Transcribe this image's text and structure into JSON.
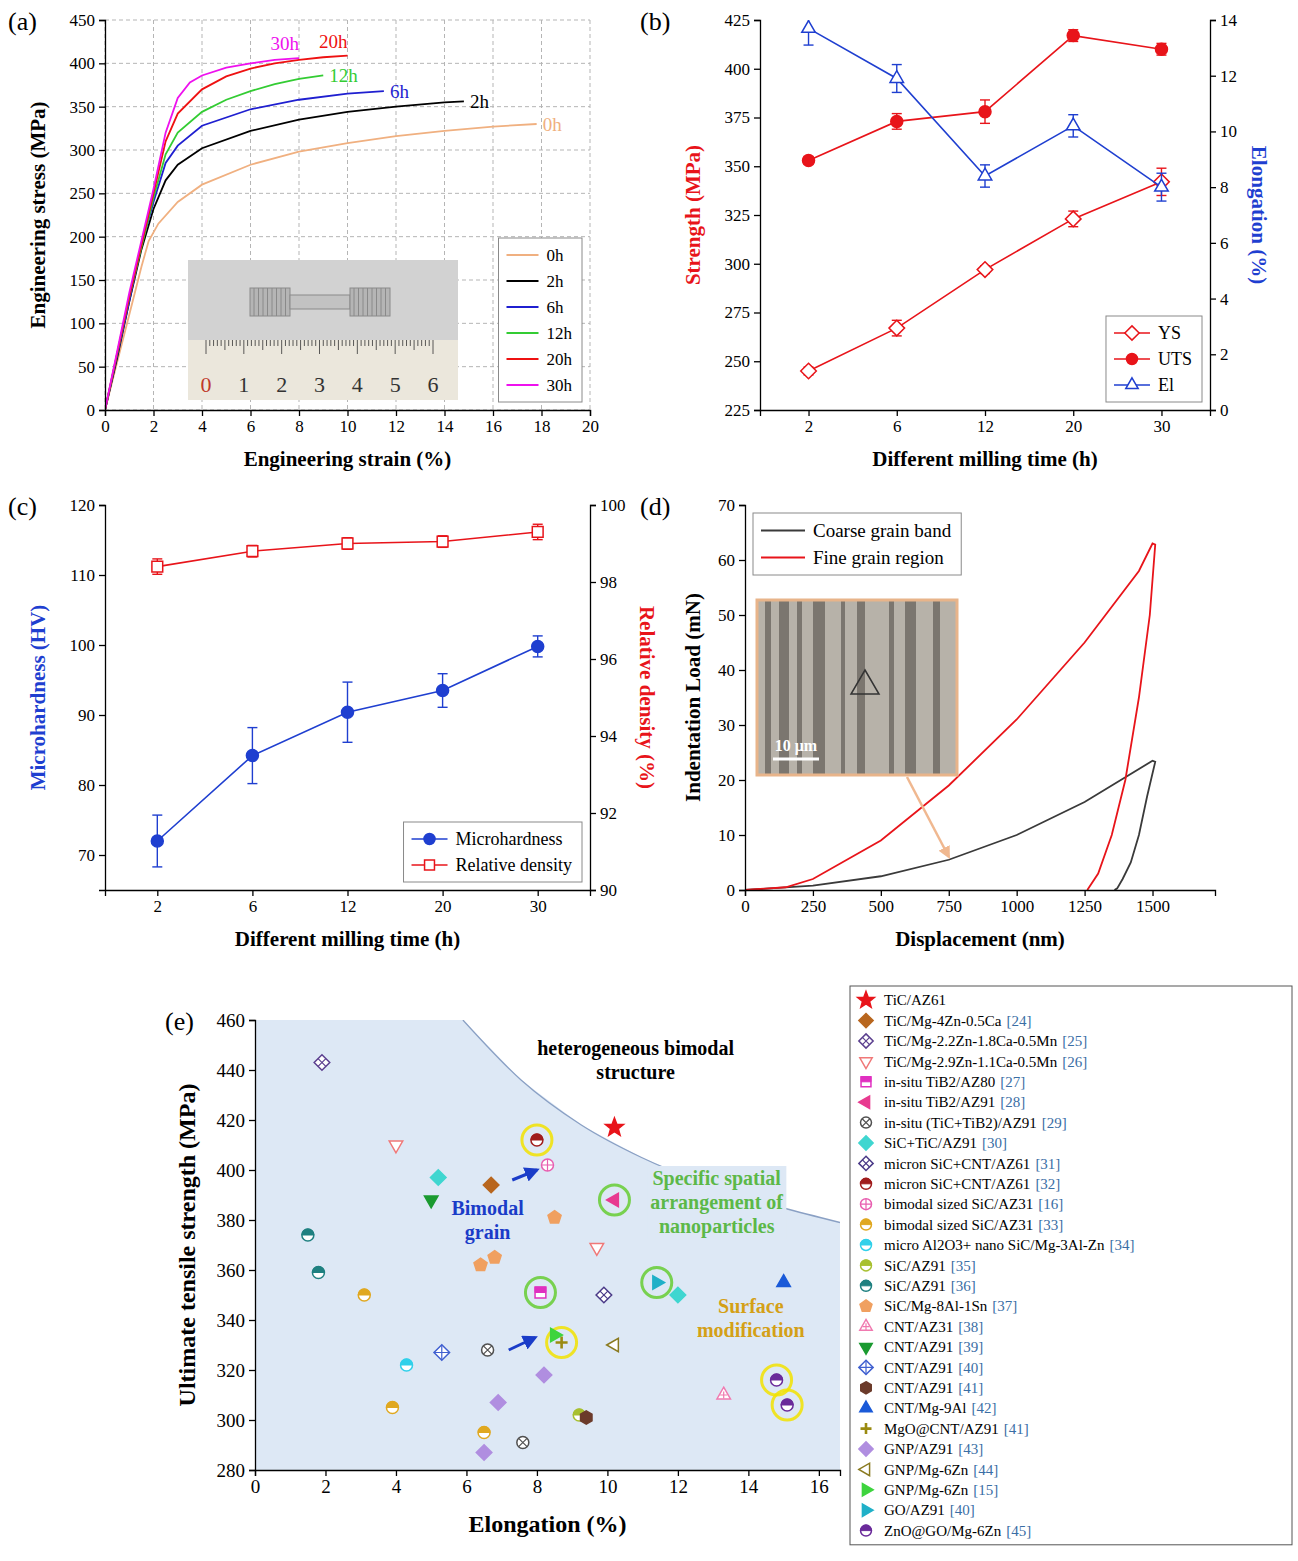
{
  "chart_data": [
    {
      "type": "line",
      "panel_label": "(a)",
      "xlabel": "Engineering strain (%)",
      "ylabel": "Engineering stress (MPa)",
      "xlim": [
        0,
        20
      ],
      "xticks": [
        0,
        2,
        4,
        6,
        8,
        10,
        12,
        14,
        16,
        18,
        20
      ],
      "ylim": [
        0,
        450
      ],
      "yticks": [
        0,
        50,
        100,
        150,
        200,
        250,
        300,
        350,
        400,
        450
      ],
      "grid": true,
      "legend": "lower right",
      "inset_labels": [
        "0",
        "1",
        "2",
        "3",
        "4",
        "5",
        "6"
      ],
      "series": [
        {
          "name": "0h",
          "color": "#f0b080",
          "x": [
            0,
            0.5,
            1,
            1.5,
            1.8,
            2.2,
            3,
            4,
            6,
            8,
            10,
            12,
            14,
            16,
            17.8
          ],
          "values": [
            0,
            55,
            110,
            165,
            195,
            215,
            240,
            260,
            283,
            298,
            308,
            316,
            322,
            327,
            330
          ]
        },
        {
          "name": "2h",
          "color": "#000000",
          "x": [
            0,
            0.5,
            1,
            1.5,
            2,
            2.5,
            3,
            4,
            6,
            8,
            10,
            12,
            14,
            14.8
          ],
          "values": [
            0,
            60,
            125,
            185,
            232,
            265,
            283,
            302,
            322,
            335,
            344,
            350,
            355,
            356
          ]
        },
        {
          "name": "6h",
          "color": "#1f1fd0",
          "x": [
            0,
            1,
            1.5,
            2,
            2.5,
            3,
            4,
            6,
            8,
            10,
            11.5
          ],
          "values": [
            0,
            125,
            190,
            240,
            285,
            305,
            328,
            347,
            358,
            365,
            368
          ]
        },
        {
          "name": "12h",
          "color": "#33cc33",
          "x": [
            0,
            1,
            2,
            2.5,
            3,
            4,
            5,
            6,
            7,
            8,
            9
          ],
          "values": [
            0,
            130,
            245,
            295,
            320,
            344,
            358,
            368,
            376,
            382,
            386
          ]
        },
        {
          "name": "20h",
          "color": "#ee1111",
          "x": [
            0,
            1,
            2,
            2.5,
            3,
            4,
            5,
            6,
            7,
            8,
            9,
            10
          ],
          "values": [
            0,
            130,
            250,
            310,
            342,
            370,
            385,
            394,
            400,
            404,
            407,
            409
          ]
        },
        {
          "name": "30h",
          "color": "#ee11ee",
          "x": [
            0,
            1,
            2,
            2.5,
            3,
            3.5,
            4,
            5,
            6,
            7,
            8
          ],
          "values": [
            0,
            135,
            255,
            320,
            360,
            378,
            386,
            395,
            400,
            404,
            406
          ]
        }
      ]
    },
    {
      "type": "line",
      "panel_label": "(b)",
      "xlabel": "Different milling time (h)",
      "ylabel": "Strength (MPa)",
      "y2label": "Elongation (%)",
      "categories": [
        "2",
        "6",
        "12",
        "20",
        "30"
      ],
      "ylim": [
        225,
        425
      ],
      "yticks": [
        225,
        250,
        275,
        300,
        325,
        350,
        375,
        400,
        425
      ],
      "y2lim": [
        0,
        14
      ],
      "y2ticks": [
        0,
        2,
        4,
        6,
        8,
        10,
        12,
        14
      ],
      "legend": "lower right",
      "series": [
        {
          "name": "YS",
          "color": "#e8141a",
          "marker": "diamond-open",
          "values": [
            245,
            267,
            297,
            323,
            342
          ],
          "errors": [
            2,
            4,
            2,
            4,
            7
          ]
        },
        {
          "name": "UTS",
          "color": "#e8141a",
          "marker": "circle",
          "values": [
            353,
            373,
            378,
            417,
            410
          ],
          "errors": [
            2,
            4,
            6,
            3,
            3
          ]
        },
        {
          "name": "El",
          "color": "#1f3fd0",
          "marker": "triangle-open",
          "axis": "y2",
          "values": [
            13.7,
            11.9,
            8.4,
            10.2,
            8.0
          ],
          "errors": [
            0.6,
            0.5,
            0.4,
            0.4,
            0.5
          ]
        }
      ]
    },
    {
      "type": "line",
      "panel_label": "(c)",
      "xlabel": "Different milling time (h)",
      "ylabel": "Microhardness (HV)",
      "y2label": "Relative density (%)",
      "categories": [
        "2",
        "6",
        "12",
        "20",
        "30"
      ],
      "ylim": [
        65,
        120
      ],
      "yticks": [
        70,
        80,
        90,
        100,
        110,
        120
      ],
      "y2lim": [
        90,
        100
      ],
      "y2ticks": [
        90,
        92,
        94,
        96,
        98,
        100
      ],
      "legend": "lower right",
      "series": [
        {
          "name": "Microhardness",
          "color": "#1f3fd0",
          "marker": "circle",
          "values": [
            72,
            84.2,
            90.4,
            93.5,
            99.8
          ],
          "errors": [
            3.7,
            4,
            4.3,
            2.4,
            1.5
          ]
        },
        {
          "name": "Relative density",
          "color": "#e8141a",
          "marker": "square-open",
          "axis": "y2",
          "values": [
            98.4,
            98.8,
            99.0,
            99.05,
            99.3
          ],
          "errors": [
            0.2,
            0.15,
            0.15,
            0.15,
            0.2
          ]
        }
      ]
    },
    {
      "type": "line",
      "panel_label": "(d)",
      "xlabel": "Displacement (nm)",
      "ylabel": "Indentation Load (mN)",
      "xlim": [
        0,
        1730
      ],
      "xticks": [
        0,
        250,
        500,
        750,
        1000,
        1250,
        1500
      ],
      "ylim": [
        0,
        70
      ],
      "yticks": [
        0,
        10,
        20,
        30,
        40,
        50,
        60,
        70
      ],
      "legend": "upper left",
      "annotations": [
        {
          "text": "10 μm"
        }
      ],
      "series": [
        {
          "name": "Coarse grain band",
          "color": "#3a3a3a",
          "x": [
            0,
            250,
            500,
            750,
            1000,
            1250,
            1500,
            1510,
            1480,
            1450,
            1420,
            1390,
            1370,
            1360
          ],
          "values": [
            0,
            0.8,
            2.5,
            5.5,
            10,
            16,
            23.5,
            23.3,
            17,
            10,
            5,
            2,
            0.3,
            0
          ]
        },
        {
          "name": "Fine grain region",
          "color": "#e8141a",
          "x": [
            0,
            150,
            250,
            500,
            750,
            1000,
            1250,
            1450,
            1500,
            1510,
            1490,
            1450,
            1400,
            1350,
            1300,
            1260
          ],
          "values": [
            0,
            0.5,
            2,
            9,
            19,
            31,
            45,
            58,
            63,
            62.8,
            50,
            35,
            20,
            10,
            3,
            0
          ]
        }
      ]
    },
    {
      "type": "scatter",
      "panel_label": "(e)",
      "xlabel": "Elongation (%)",
      "ylabel": "Ultimate tensile strength (MPa)",
      "xlim": [
        0,
        16.6
      ],
      "xticks": [
        0,
        2,
        4,
        6,
        8,
        10,
        12,
        14,
        16
      ],
      "ylim": [
        280,
        460
      ],
      "yticks": [
        280,
        300,
        320,
        340,
        360,
        380,
        400,
        420,
        440,
        460
      ],
      "legend": "right",
      "boundary": {
        "x": [
          5.9,
          7.55,
          9.26,
          10.97,
          12.68,
          14.96,
          16.6
        ],
        "y": [
          460,
          436,
          418,
          405,
          395,
          385,
          379
        ]
      },
      "annotations": [
        {
          "text": [
            "heterogeneous bimodal",
            "structure"
          ],
          "x": 10.8,
          "y": 446,
          "color": "#000000"
        },
        {
          "text": [
            "Bimodal",
            "grain"
          ],
          "x": 6.6,
          "y": 382,
          "color": "#1a3cc8"
        },
        {
          "text": [
            "Specific spatial",
            "arrangement of",
            "nanoparticles"
          ],
          "x": 13.1,
          "y": 394,
          "color": "#5cb848"
        },
        {
          "text": [
            "Surface",
            "modification"
          ],
          "x": 14.07,
          "y": 343,
          "color": "#d4a017"
        }
      ],
      "highlights": [
        {
          "x": 8.0,
          "y": 412,
          "color": "#f2e200"
        },
        {
          "x": 8.7,
          "y": 331,
          "color": "#f2e200"
        },
        {
          "x": 14.8,
          "y": 316,
          "color": "#f2e200"
        },
        {
          "x": 15.1,
          "y": 306,
          "color": "#f2e200"
        },
        {
          "x": 8.1,
          "y": 351,
          "color": "#66cc33"
        },
        {
          "x": 10.2,
          "y": 388,
          "color": "#66cc33"
        },
        {
          "x": 11.4,
          "y": 355,
          "color": "#66cc33"
        }
      ],
      "arrows": [
        {
          "x": [
            7.3,
            8.0
          ],
          "y": [
            396,
            400
          ],
          "color": "#1a3cc8"
        },
        {
          "x": [
            7.2,
            7.95
          ],
          "y": [
            328,
            333
          ],
          "color": "#1a3cc8"
        }
      ],
      "series": [
        {
          "name": "TiC/AZ61",
          "color": "#e8141a",
          "marker": "star",
          "x": [
            10.2
          ],
          "values": [
            417
          ]
        },
        {
          "name": "TiC/Mg-4Zn-0.5Ca",
          "ref": "[24]",
          "color": "#b8661e",
          "marker": "diamond",
          "x": [
            6.7
          ],
          "values": [
            394
          ]
        },
        {
          "name": "TiC/Mg-2.2Zn-1.8Ca-0.5Mn",
          "ref": "[25]",
          "color": "#5b3f8f",
          "marker": "diamond-open-x",
          "x": [
            1.9
          ],
          "values": [
            443
          ]
        },
        {
          "name": "TiC/Mg-2.9Zn-1.1Ca-0.5Mn",
          "ref": "[26]",
          "color": "#f07878",
          "marker": "triangle-down-open",
          "x": [
            4.0,
            9.7
          ],
          "values": [
            410,
            369
          ]
        },
        {
          "name": "in-situ TiB2/AZ80",
          "ref": "[27]",
          "color": "#e030c0",
          "marker": "square-half",
          "x": [
            8.1
          ],
          "values": [
            351
          ]
        },
        {
          "name": "in-situ TiB2/AZ91",
          "ref": "[28]",
          "color": "#e83a90",
          "marker": "triangle-left",
          "x": [
            10.2
          ],
          "values": [
            388
          ]
        },
        {
          "name": "in-situ (TiC+TiB2)/AZ91",
          "ref": "[29]",
          "color": "#505050",
          "marker": "circle-open-x",
          "x": [
            6.6,
            7.6
          ],
          "values": [
            328,
            291
          ]
        },
        {
          "name": "SiC+TiC/AZ91",
          "ref": "[30]",
          "color": "#3fd6d0",
          "marker": "diamond",
          "x": [
            5.2,
            12.0
          ],
          "values": [
            397,
            350
          ]
        },
        {
          "name": "micron SiC+CNT/AZ61",
          "ref": "[31]",
          "color": "#4a3a88",
          "marker": "diamond-open-x",
          "x": [
            9.9
          ],
          "values": [
            350
          ]
        },
        {
          "name": "micron SiC+CNT/AZ61",
          "ref": "[32]",
          "color": "#a01c1c",
          "marker": "circle-half",
          "x": [
            8.0
          ],
          "values": [
            412
          ]
        },
        {
          "name": "bimodal sized SiC/AZ31",
          "ref": "[16]",
          "color": "#e85fb0",
          "marker": "circle-open-plus",
          "x": [
            8.3
          ],
          "values": [
            402
          ]
        },
        {
          "name": "bimodal sized SiC/AZ31",
          "ref": "[33]",
          "color": "#e0a820",
          "marker": "circle-half",
          "x": [
            3.1,
            3.9,
            6.5
          ],
          "values": [
            350,
            305,
            295
          ]
        },
        {
          "name": "micro Al2O3+ nano SiC/Mg-3Al-Zn",
          "ref": "[34]",
          "color": "#30d0ea",
          "marker": "circle-half",
          "x": [
            4.3
          ],
          "values": [
            322
          ]
        },
        {
          "name": "SiC/AZ91",
          "ref": "[35]",
          "color": "#a8c030",
          "marker": "circle-half",
          "x": [
            9.2
          ],
          "values": [
            302
          ]
        },
        {
          "name": "SiC/AZ91",
          "ref": "[36]",
          "color": "#1f8080",
          "marker": "circle-half",
          "x": [
            1.5,
            1.8
          ],
          "values": [
            374,
            359
          ]
        },
        {
          "name": "SiC/Mg-8Al-1Sn",
          "ref": "[37]",
          "color": "#f0a060",
          "marker": "pentagon",
          "x": [
            6.4,
            6.8,
            8.5
          ],
          "values": [
            362,
            365,
            381
          ]
        },
        {
          "name": "CNT/AZ31",
          "ref": "[38]",
          "color": "#f07ab0",
          "marker": "triangle-open-plus",
          "x": [
            13.3
          ],
          "values": [
            310
          ]
        },
        {
          "name": "CNT/AZ91",
          "ref": "[39]",
          "color": "#1a9a30",
          "marker": "triangle-down",
          "x": [
            5.0
          ],
          "values": [
            388
          ]
        },
        {
          "name": "CNT/AZ91",
          "ref": "[40]",
          "color": "#4060d0",
          "marker": "diamond-open-plus",
          "x": [
            5.3
          ],
          "values": [
            327
          ]
        },
        {
          "name": "CNT/AZ91",
          "ref": "[41]",
          "color": "#6b3a2a",
          "marker": "hexagon",
          "x": [
            9.4
          ],
          "values": [
            301
          ]
        },
        {
          "name": "CNT/Mg-9Al",
          "ref": "[42]",
          "color": "#1a5ad8",
          "marker": "triangle",
          "x": [
            15.0
          ],
          "values": [
            355
          ]
        },
        {
          "name": "MgO@CNT/AZ91",
          "ref": "[41]",
          "color": "#9a8a10",
          "marker": "plus",
          "x": [
            8.7
          ],
          "values": [
            331
          ]
        },
        {
          "name": "GNP/AZ91",
          "ref": "[43]",
          "color": "#b08ee0",
          "marker": "diamond",
          "x": [
            6.9,
            6.5,
            8.2
          ],
          "values": [
            307,
            287,
            318
          ]
        },
        {
          "name": "GNP/Mg-6Zn",
          "ref": "[44]",
          "color": "#8a7a20",
          "marker": "triangle-left-open",
          "x": [
            10.2
          ],
          "values": [
            330
          ]
        },
        {
          "name": "GNP/Mg-6Zn",
          "ref": "[15]",
          "color": "#3ed43e",
          "marker": "triangle-right",
          "x": [
            8.5
          ],
          "values": [
            334
          ]
        },
        {
          "name": "GO/AZ91",
          "ref": "[40]",
          "color": "#20b0c8",
          "marker": "triangle-right",
          "x": [
            11.4
          ],
          "values": [
            355
          ]
        },
        {
          "name": "ZnO@GO/Mg-6Zn",
          "ref": "[45]",
          "color": "#6a2a9a",
          "marker": "circle-half",
          "x": [
            14.8,
            15.1
          ],
          "values": [
            316,
            306
          ]
        }
      ]
    }
  ]
}
